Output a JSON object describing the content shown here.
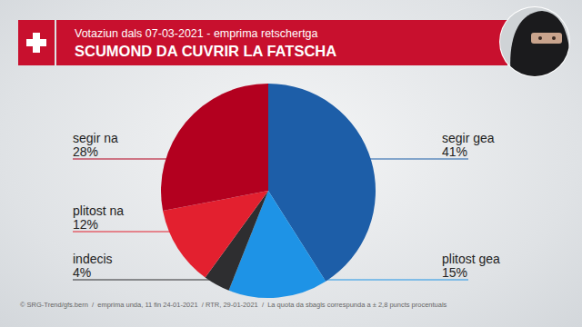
{
  "chart_data": {
    "type": "pie",
    "subtitle": "Votaziun dals 07-03-2021 - emprima retschertga",
    "title": "SCUMOND DA CUVRIR LA FATSCHA",
    "categories": [
      "segir gea",
      "plitost gea",
      "indecis",
      "plitost na",
      "segir na"
    ],
    "values": [
      41,
      15,
      4,
      12,
      28
    ],
    "value_labels": [
      "41%",
      "15%",
      "4%",
      "12%",
      "28%"
    ],
    "colors": [
      "#1d5ea8",
      "#1e93e6",
      "#2e2e30",
      "#e3202f",
      "#b3001f"
    ],
    "data_labels": true,
    "source": "© SRG-Trend/gfs.bern  /  emprima unda, 11 fin 24-01-2021  / RTR, 29-01-2021  /  La quota da sbagls correspunda a ± 2,8 puncts procentuals"
  }
}
